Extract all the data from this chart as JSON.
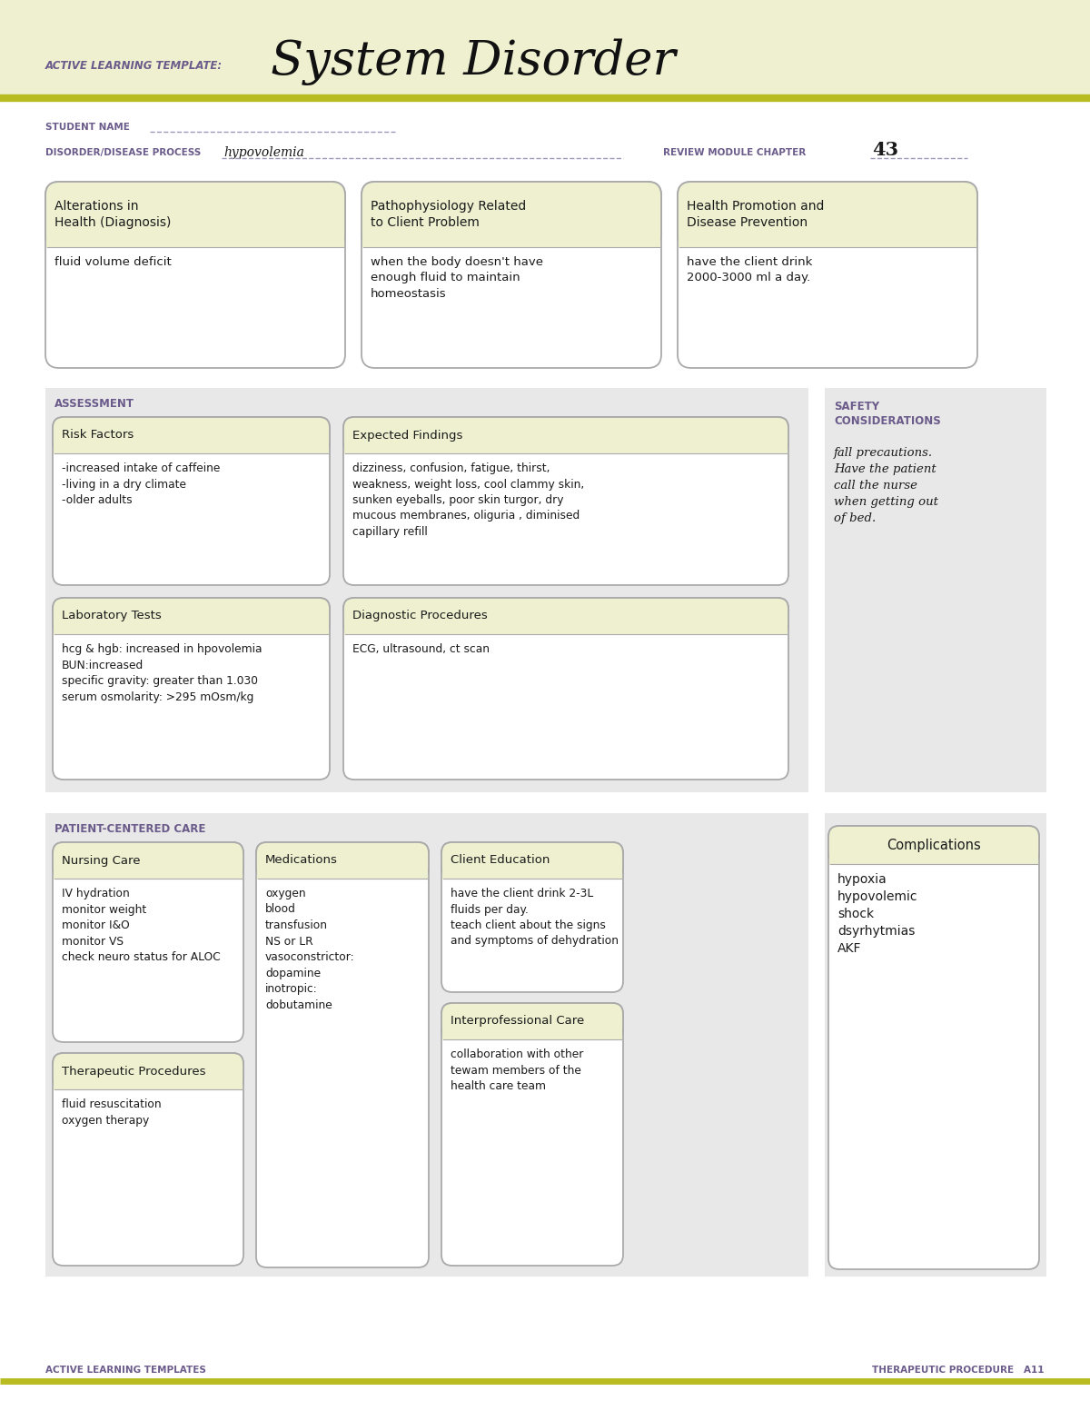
{
  "bg_header": "#eef0d0",
  "bg_white": "#ffffff",
  "bg_box": "#eef0d0",
  "bg_section": "#e8e8e8",
  "border_color": "#aaaaaa",
  "olive_line": "#b8bc20",
  "purple_label": "#6b5b8b",
  "black_text": "#111111",
  "dark_text": "#1a1a1a",
  "header_label": "ACTIVE LEARNING TEMPLATE:",
  "header_title": "System Disorder",
  "student_name_label": "STUDENT NAME",
  "disorder_label": "DISORDER/DISEASE PROCESS",
  "disorder_value": "hypovolemia",
  "review_label": "REVIEW MODULE CHAPTER",
  "review_value": "43",
  "top_boxes": [
    {
      "title": "Alterations in\nHealth (Diagnosis)",
      "content": "fluid volume deficit"
    },
    {
      "title": "Pathophysiology Related\nto Client Problem",
      "content": "when the body doesn't have\nenough fluid to maintain\nhomeostasis"
    },
    {
      "title": "Health Promotion and\nDisease Prevention",
      "content": "have the client drink\n2000-3000 ml a day."
    }
  ],
  "assessment_label": "ASSESSMENT",
  "safety_label": "SAFETY\nCONSIDERATIONS",
  "safety_content": "fall precautions.\nHave the patient\ncall the nurse\nwhen getting out\nof bed.",
  "assessment_boxes": [
    {
      "title": "Risk Factors",
      "content": "-increased intake of caffeine\n-living in a dry climate\n-older adults"
    },
    {
      "title": "Expected Findings",
      "content": "dizziness, confusion, fatigue, thirst,\nweakness, weight loss, cool clammy skin,\nsunken eyeballs, poor skin turgor, dry\nmucous membranes, oliguria , diminised\ncapillary refill"
    },
    {
      "title": "Laboratory Tests",
      "content": "hcg & hgb: increased in hpovolemia\nBUN:increased\nspecific gravity: greater than 1.030\nserum osmolarity: >295 mOsm/kg"
    },
    {
      "title": "Diagnostic Procedures",
      "content": "ECG, ultrasound, ct scan"
    }
  ],
  "patient_care_label": "PATIENT-CENTERED CARE",
  "nursing_care": {
    "title": "Nursing Care",
    "content": "IV hydration\nmonitor weight\nmonitor I&O\nmonitor VS\ncheck neuro status for ALOC"
  },
  "medications": {
    "title": "Medications",
    "content": "oxygen\nblood\ntransfusion\nNS or LR\nvasoconstrictor:\ndopamine\ninotropic:\ndobutamine"
  },
  "client_education": {
    "title": "Client Education",
    "content": "have the client drink 2-3L\nfluids per day.\nteach client about the signs\nand symptoms of dehydration"
  },
  "therapeutic_procedures": {
    "title": "Therapeutic Procedures",
    "content": "fluid resuscitation\noxygen therapy"
  },
  "interprofessional_care": {
    "title": "Interprofessional Care",
    "content": "collaboration with other\ntewam members of the\nhealth care team"
  },
  "complications": {
    "title": "Complications",
    "content": "hypoxia\nhypovolemic\nshock\ndsyrhytmias\nAKF"
  },
  "footer_left": "ACTIVE LEARNING TEMPLATES",
  "footer_right": "THERAPEUTIC PROCEDURE   A11"
}
